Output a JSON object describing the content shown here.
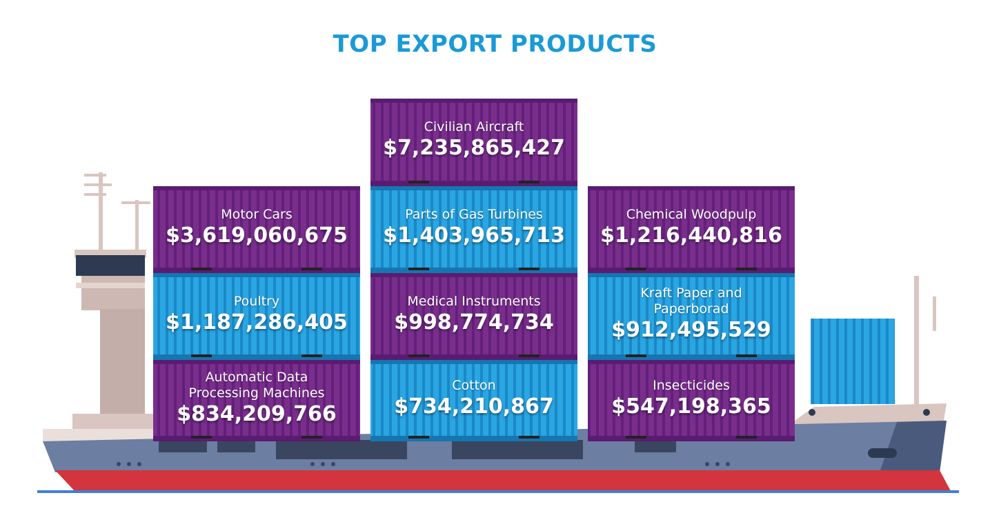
{
  "header": {
    "title": "TOP EXPORT PRODUCTS"
  },
  "products": [
    {
      "label": "Civilian Aircraft",
      "value": "$7,235,865,427"
    },
    {
      "label": "Motor Cars",
      "value": "$3,619,060,675"
    },
    {
      "label": "Parts of Gas Turbines",
      "value": "$1,403,965,713"
    },
    {
      "label": "Chemical Woodpulp",
      "value": "$1,216,440,816"
    },
    {
      "label": "Poultry",
      "value": "$1,187,286,405"
    },
    {
      "label": "Medical Instruments",
      "value": "$998,774,734"
    },
    {
      "label": "Kraft Paper and Paperborad",
      "value": "$912,495,529"
    },
    {
      "label": "Automatic Data Processing Machines",
      "value": "$834,209,766"
    },
    {
      "label": "Cotton",
      "value": "$734,210,867"
    },
    {
      "label": "Insecticides",
      "value": "$547,198,365"
    }
  ]
}
